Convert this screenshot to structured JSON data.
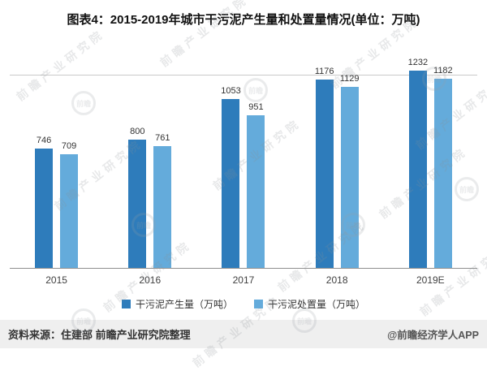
{
  "page": {
    "title": "图表4：2015-2019年城市干污泥产生量和处置量情况(单位：万吨)"
  },
  "chart_data": {
    "type": "bar",
    "categories": [
      "2015",
      "2016",
      "2017",
      "2018",
      "2019E"
    ],
    "series": [
      {
        "name": "干污泥产生量（万吨）",
        "color": "#2e7cbb",
        "values": [
          746,
          800,
          1053,
          1176,
          1232
        ]
      },
      {
        "name": "干污泥处置量（万吨）",
        "color": "#64abdb",
        "values": [
          709,
          761,
          951,
          1129,
          1182
        ]
      }
    ],
    "ylim": [
      0,
      1200
    ],
    "grid": "single-top-gridline",
    "legend_position": "bottom",
    "xlabel": "",
    "ylabel": ""
  },
  "footer": {
    "source": "资料来源：住建部 前瞻产业研究院整理",
    "credit": "@前瞻经济学人APP"
  },
  "watermark": {
    "text": "前瞻产业研究院",
    "logo_text": "前瞻"
  }
}
